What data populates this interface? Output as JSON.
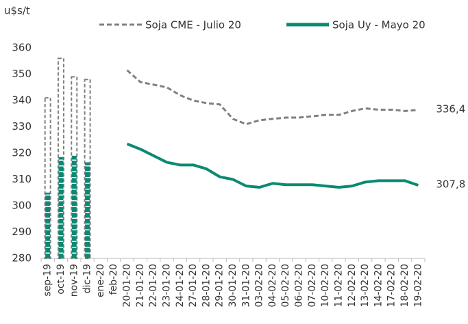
{
  "chart_data": {
    "type": "combo",
    "y_label": "u$s/t",
    "categories": [
      "sep-19",
      "oct-19",
      "nov-19",
      "dic-19",
      "ene-20",
      "feb-20",
      "20-01-20",
      "21-01-20",
      "22-01-20",
      "23-01-20",
      "24-01-20",
      "27-01-20",
      "28-01-20",
      "29-01-20",
      "30-01-20",
      "31-01-20",
      "03-02-20",
      "04-02-20",
      "05-02-20",
      "06-02-20",
      "07-02-20",
      "10-02-20",
      "11-02-20",
      "12-02-20",
      "13-02-20",
      "14-02-20",
      "17-02-20",
      "18-02-20",
      "19-02-20"
    ],
    "bar_count": 4,
    "series": [
      {
        "name": "Soja CME - Julio 20",
        "color": "#808080",
        "dashed": true,
        "end_label": "336,4",
        "values": [
          341,
          356,
          349,
          348,
          null,
          null,
          351.5,
          347,
          346,
          345,
          342,
          340,
          339,
          338.5,
          333,
          331,
          332.5,
          333,
          333.5,
          333.5,
          334,
          334.5,
          334.5,
          336,
          337,
          336.5,
          336.5,
          336,
          336.4
        ]
      },
      {
        "name": "Soja Uy - Mayo 20",
        "color": "#0a8a72",
        "dashed": false,
        "end_label": "307,8",
        "values": [
          305,
          318.5,
          319,
          316.5,
          null,
          null,
          323.5,
          321.5,
          319,
          316.5,
          315.5,
          315.5,
          314,
          311,
          310,
          307.5,
          307,
          308.5,
          308,
          308,
          308,
          307.5,
          307,
          307.5,
          309,
          309.5,
          309.5,
          309.5,
          307.8
        ]
      }
    ],
    "ylim": [
      280,
      360
    ],
    "yticks": [
      280,
      290,
      300,
      310,
      320,
      330,
      340,
      350,
      360
    ],
    "grid": false
  }
}
